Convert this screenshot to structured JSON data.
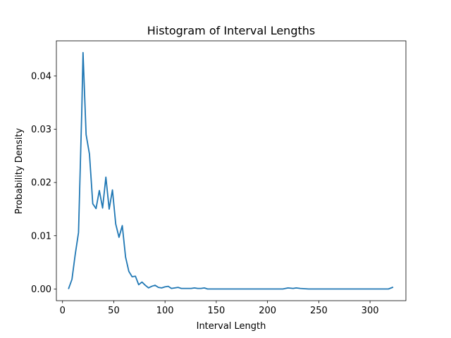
{
  "chart_data": {
    "type": "line",
    "title": "Histogram of Interval Lengths",
    "xlabel": "Interval Length",
    "ylabel": "Probability Density",
    "xlim": [
      -6,
      335
    ],
    "ylim": [
      -0.0022,
      0.0466
    ],
    "xticks": [
      0,
      50,
      100,
      150,
      200,
      250,
      300
    ],
    "yticks": [
      0.0,
      0.01,
      0.02,
      0.03,
      0.04
    ],
    "ytick_labels": [
      "0.00",
      "0.01",
      "0.02",
      "0.03",
      "0.04"
    ],
    "grid": false,
    "color": "#1f77b4",
    "series": [
      {
        "x": [
          6,
          9.2,
          12.4,
          15.6,
          18.8,
          20,
          23,
          26.3,
          29.5,
          32.7,
          35.9,
          39.1,
          42.3,
          45.5,
          48.7,
          51.9,
          55.1,
          58.3,
          61.5,
          64.7,
          67.9,
          71.1,
          74.3,
          77.5,
          80.7,
          83.9,
          87.1,
          90.3,
          93.5,
          96.7,
          99.9,
          103.1,
          106.3,
          109.5,
          112.7,
          115.9,
          119.1,
          122.3,
          125.5,
          128.7,
          131.9,
          135.1,
          138.3,
          141.5,
          144.7,
          147.9,
          160,
          170,
          180,
          200,
          215,
          220,
          225,
          228,
          232,
          240,
          260,
          280,
          300,
          310,
          318,
          322
        ],
        "y": [
          0.0001,
          0.0018,
          0.0065,
          0.0106,
          0.0335,
          0.0444,
          0.029,
          0.0253,
          0.016,
          0.0151,
          0.0185,
          0.0152,
          0.021,
          0.015,
          0.0186,
          0.0122,
          0.0097,
          0.0119,
          0.006,
          0.0033,
          0.0023,
          0.0024,
          0.0008,
          0.0013,
          0.0007,
          0.0002,
          0.0005,
          0.0007,
          0.0003,
          0.0002,
          0.0004,
          0.0005,
          0.0001,
          0.0002,
          0.0003,
          0.0001,
          0.0001,
          0.0001,
          0.0001,
          0.0002,
          0.0001,
          0.0001,
          0.0002,
          0.0,
          0.0,
          0.0,
          0.0,
          0.0,
          0.0,
          0.0,
          0.0,
          0.0002,
          0.0001,
          0.0002,
          0.0001,
          0.0,
          0.0,
          0.0,
          0.0,
          0.0,
          0.0,
          0.0003
        ]
      }
    ]
  }
}
